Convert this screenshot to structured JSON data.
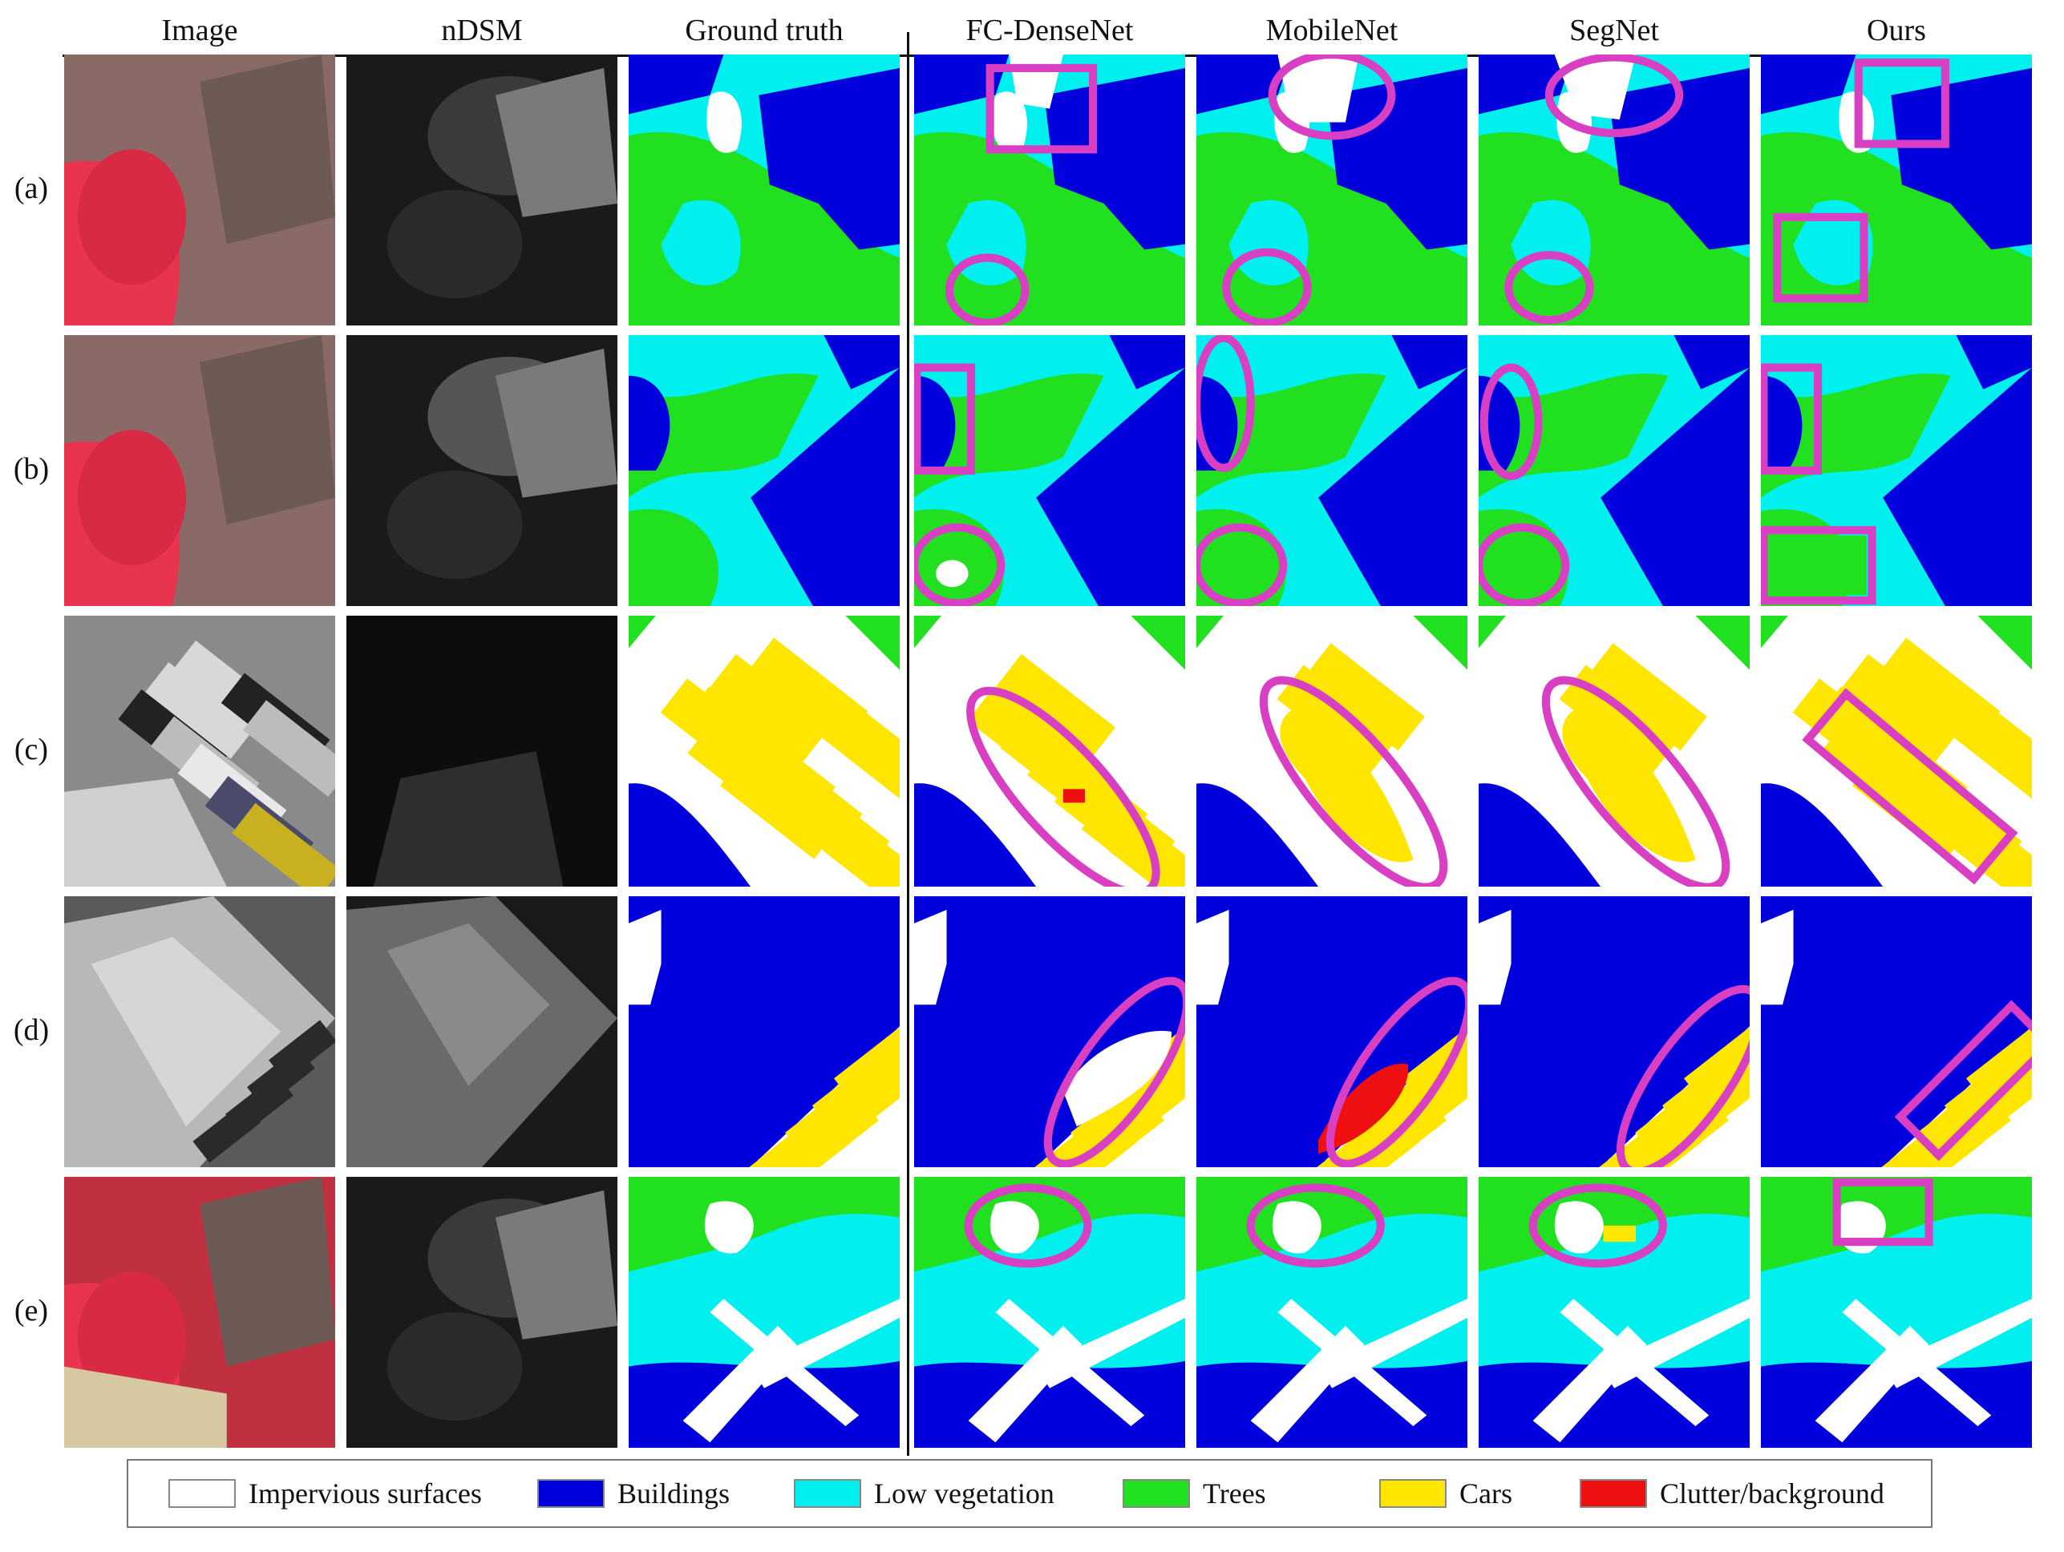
{
  "columns": [
    "Image",
    "nDSM",
    "Ground truth",
    "FC-DenseNet",
    "MobileNet",
    "SegNet",
    "Ours"
  ],
  "rows": [
    "(a)",
    "(b)",
    "(c)",
    "(d)",
    "(e)"
  ],
  "legend": [
    {
      "label": "Impervious surfaces",
      "color": "#ffffff"
    },
    {
      "label": "Buildings",
      "color": "#0000dd"
    },
    {
      "label": "Low vegetation",
      "color": "#00f0f0"
    },
    {
      "label": "Trees",
      "color": "#20e020"
    },
    {
      "label": "Cars",
      "color": "#ffe600"
    },
    {
      "label": "Clutter/background",
      "color": "#ee1010"
    }
  ],
  "colors": {
    "impervious": "#ffffff",
    "building": "#0000dd",
    "lowveg": "#00f0f0",
    "tree": "#20e020",
    "car": "#ffe600",
    "clutter": "#ee1010",
    "highlight": "#d93fc2",
    "ir_red": "#e8344e",
    "roof": "#6e5a55"
  }
}
